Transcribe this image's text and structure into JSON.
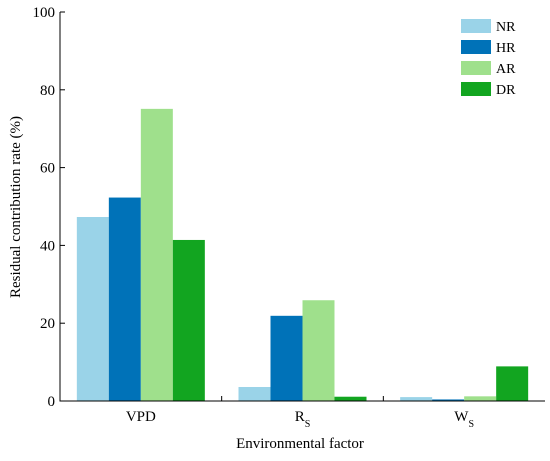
{
  "chart_data": {
    "type": "bar",
    "title": "",
    "xlabel": "Environmental factor",
    "ylabel": "Residual contribution rate (%)",
    "ylim": [
      0,
      100
    ],
    "yticks": [
      0,
      20,
      40,
      60,
      80,
      100
    ],
    "categories": [
      {
        "main": "VPD",
        "sub": ""
      },
      {
        "main": "R",
        "sub": "S"
      },
      {
        "main": "W",
        "sub": "S"
      }
    ],
    "series": [
      {
        "name": "NR",
        "color": "#9ad3e8",
        "values": [
          47.3,
          3.6,
          1.0
        ]
      },
      {
        "name": "HR",
        "color": "#0072b8",
        "values": [
          52.3,
          21.9,
          0.4
        ]
      },
      {
        "name": "AR",
        "color": "#9fe08c",
        "values": [
          75.1,
          25.9,
          1.2
        ]
      },
      {
        "name": "DR",
        "color": "#12a520",
        "values": [
          41.4,
          1.1,
          8.9
        ]
      }
    ],
    "legend_position": "top-right",
    "grid": false
  }
}
